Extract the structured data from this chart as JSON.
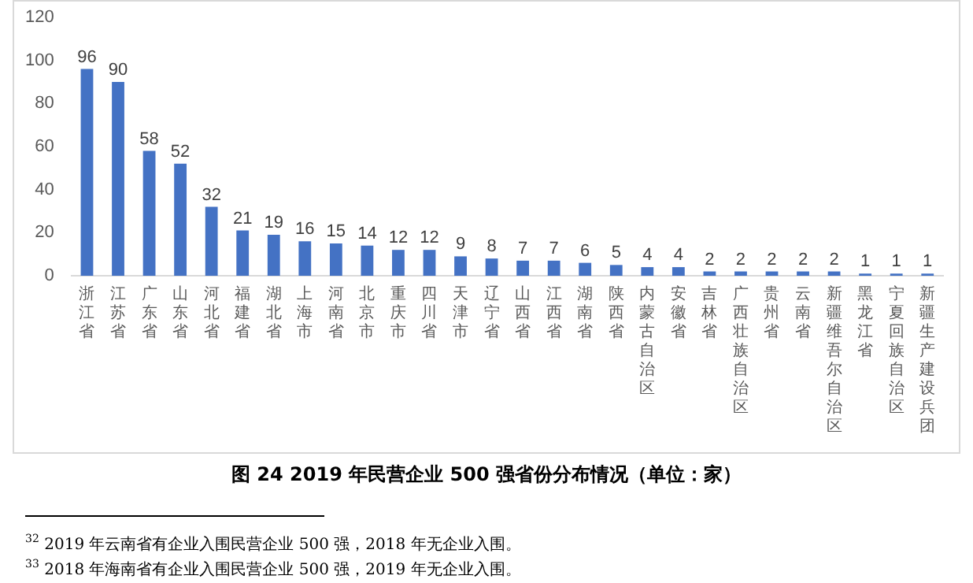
{
  "chart_data": {
    "type": "bar",
    "title": "图 24  2019 年民营企业 500 强省份分布情况（单位：家）",
    "categories": [
      "浙江省",
      "江苏省",
      "广东省",
      "山东省",
      "河北省",
      "福建省",
      "湖北省",
      "上海市",
      "河南省",
      "北京市",
      "重庆市",
      "四川省",
      "天津市",
      "辽宁省",
      "山西省",
      "江西省",
      "湖南省",
      "陕西省",
      "内蒙古自治区",
      "安徽省",
      "吉林省",
      "广西壮族自治区",
      "贵州省",
      "云南省",
      "新疆维吾尔自治区",
      "黑龙江省",
      "宁夏回族自治区",
      "新疆生产建设兵团"
    ],
    "values": [
      96,
      90,
      58,
      52,
      32,
      21,
      19,
      16,
      15,
      14,
      12,
      12,
      9,
      8,
      7,
      7,
      6,
      5,
      4,
      4,
      2,
      2,
      2,
      2,
      2,
      1,
      1,
      1
    ],
    "color": "#4472c4",
    "ylim": [
      0,
      120
    ],
    "yticks": [
      0,
      20,
      40,
      60,
      80,
      100,
      120
    ],
    "grid": false,
    "data_labels": true,
    "annotations": [
      "$^{32}$ 2019 年云南省有企业入围民营企业 500 强，2018 年无企业入围。",
      "$^{33}$ 2018 年海南省有企业入围民营企业 500 强，2019 年无企业入围。"
    ]
  }
}
